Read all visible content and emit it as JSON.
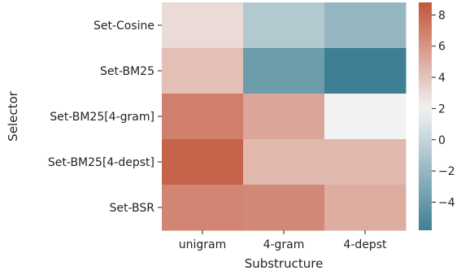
{
  "chart_data": {
    "type": "heatmap",
    "xlabel": "Substructure",
    "ylabel": "Selector",
    "x_categories": [
      "unigram",
      "4-gram",
      "4-depst"
    ],
    "y_categories": [
      "Set-Cosine",
      "Set-BM25",
      "Set-BM25[4-gram]",
      "Set-BM25[4-depst]",
      "Set-BSR"
    ],
    "values": [
      [
        3.0,
        -0.8,
        -2.0
      ],
      [
        4.2,
        -3.8,
        -5.8
      ],
      [
        7.0,
        5.3,
        2.0
      ],
      [
        8.2,
        4.5,
        4.5
      ],
      [
        6.7,
        6.6,
        5.0
      ]
    ],
    "colorbar": {
      "vmin": -5.8,
      "vmax": 8.8,
      "center": 2.0,
      "ticks": [
        "−4",
        "−2",
        "0",
        "2",
        "4",
        "6",
        "8"
      ],
      "tick_values": [
        -4,
        -2,
        0,
        2,
        4,
        6,
        8
      ]
    },
    "colors": {
      "low": "#3f7f93",
      "mid": "#f2f2f2",
      "high": "#c3553a"
    },
    "grid": false,
    "legend": "colorbar-right"
  }
}
